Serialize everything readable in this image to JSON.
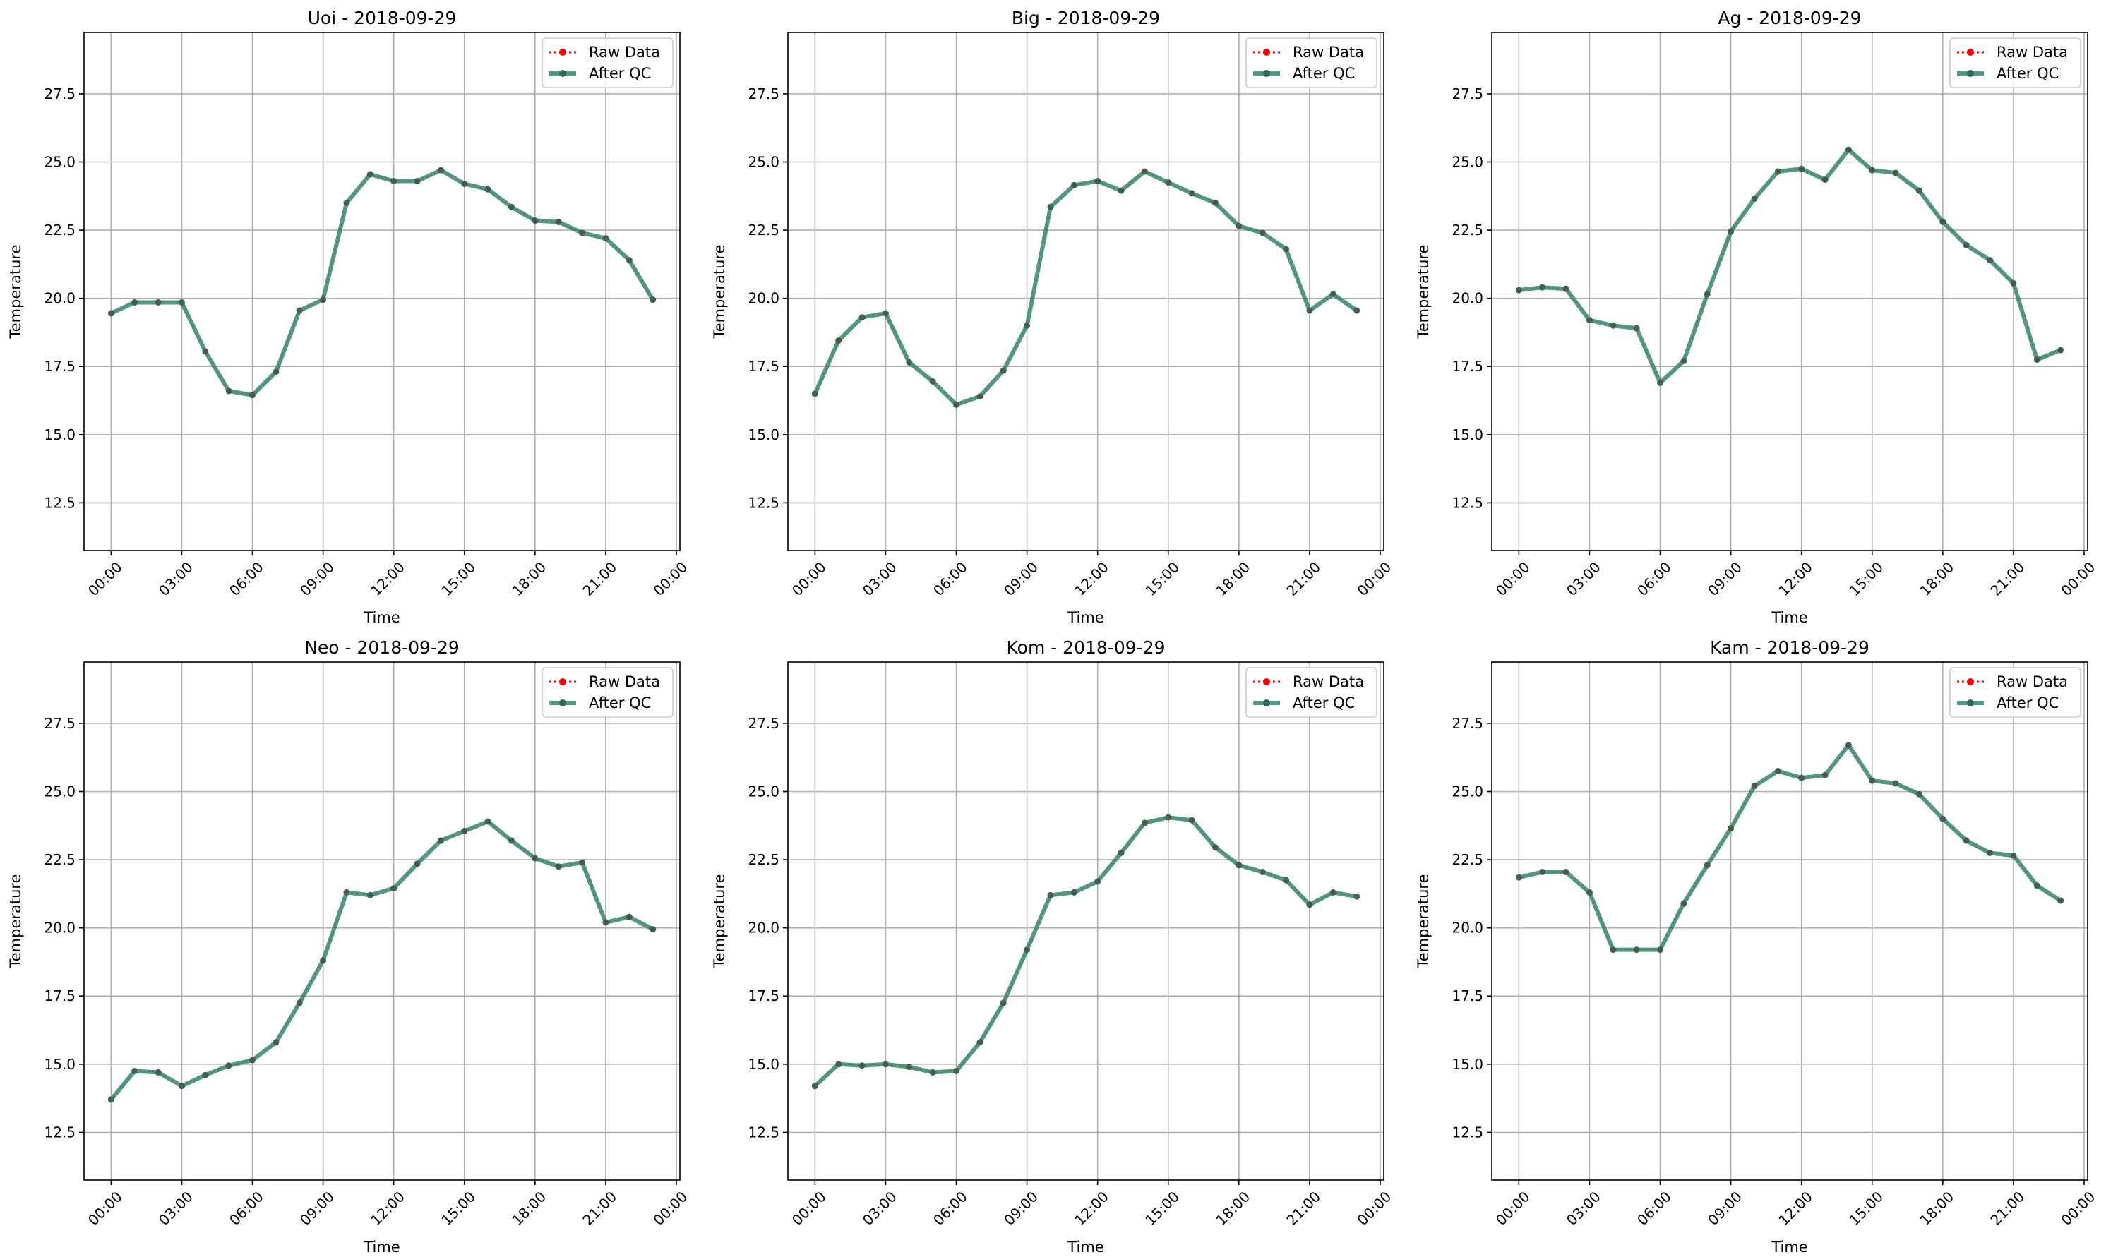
{
  "figure": {
    "legend_placement": "upper-right",
    "grid": true,
    "colors": {
      "raw": "#ff0000",
      "qc": "#2e8b6e",
      "qc_marker": "#2e6b56",
      "grid": "#b0b0b0"
    }
  },
  "chart_data": [
    {
      "type": "line",
      "title": "Uoi - 2018-09-29",
      "xlabel": "Time",
      "ylabel": "Temperature",
      "x_unit": "hours",
      "xlim": [
        -1.15,
        24.15
      ],
      "ylim": [
        10.75,
        29.75
      ],
      "yticks": [
        "12.5",
        "15.0",
        "17.5",
        "20.0",
        "22.5",
        "25.0",
        "27.5"
      ],
      "xticks": [
        "00:00",
        "03:00",
        "06:00",
        "09:00",
        "12:00",
        "15:00",
        "18:00",
        "21:00",
        "00:00"
      ],
      "legend": [
        "Raw Data",
        "After QC"
      ],
      "x": [
        0,
        1,
        2,
        3,
        4,
        5,
        6,
        7,
        8,
        9,
        10,
        11,
        12,
        13,
        14,
        15,
        16,
        17,
        18,
        19,
        20,
        21,
        22,
        23
      ],
      "series": [
        {
          "name": "Raw Data",
          "values": [
            19.45,
            19.85,
            19.85,
            19.85,
            18.05,
            16.6,
            16.45,
            17.3,
            19.55,
            19.95,
            23.5,
            24.55,
            24.3,
            24.3,
            24.7,
            24.2,
            24.0,
            23.35,
            22.85,
            22.8,
            22.4,
            22.2,
            21.4,
            19.95
          ]
        },
        {
          "name": "After QC",
          "values": [
            19.45,
            19.85,
            19.85,
            19.85,
            18.05,
            16.6,
            16.45,
            17.3,
            19.55,
            19.95,
            23.5,
            24.55,
            24.3,
            24.3,
            24.7,
            24.2,
            24.0,
            23.35,
            22.85,
            22.8,
            22.4,
            22.2,
            21.4,
            19.95
          ]
        }
      ]
    },
    {
      "type": "line",
      "title": "Big - 2018-09-29",
      "xlabel": "Time",
      "ylabel": "Temperature",
      "x_unit": "hours",
      "xlim": [
        -1.15,
        24.15
      ],
      "ylim": [
        10.75,
        29.75
      ],
      "yticks": [
        "12.5",
        "15.0",
        "17.5",
        "20.0",
        "22.5",
        "25.0",
        "27.5"
      ],
      "xticks": [
        "00:00",
        "03:00",
        "06:00",
        "09:00",
        "12:00",
        "15:00",
        "18:00",
        "21:00",
        "00:00"
      ],
      "legend": [
        "Raw Data",
        "After QC"
      ],
      "x": [
        0,
        1,
        2,
        3,
        4,
        5,
        6,
        7,
        8,
        9,
        10,
        11,
        12,
        13,
        14,
        15,
        16,
        17,
        18,
        19,
        20,
        21,
        22,
        23
      ],
      "series": [
        {
          "name": "Raw Data",
          "values": [
            16.5,
            18.45,
            19.3,
            19.45,
            17.65,
            16.95,
            16.1,
            16.4,
            17.35,
            19.0,
            23.35,
            24.15,
            24.3,
            23.95,
            24.65,
            24.25,
            23.85,
            23.5,
            22.65,
            22.4,
            21.8,
            19.55,
            20.15,
            19.55
          ]
        },
        {
          "name": "After QC",
          "values": [
            16.5,
            18.45,
            19.3,
            19.45,
            17.65,
            16.95,
            16.1,
            16.4,
            17.35,
            19.0,
            23.35,
            24.15,
            24.3,
            23.95,
            24.65,
            24.25,
            23.85,
            23.5,
            22.65,
            22.4,
            21.8,
            19.55,
            20.15,
            19.55
          ]
        }
      ]
    },
    {
      "type": "line",
      "title": "Ag - 2018-09-29",
      "xlabel": "Time",
      "ylabel": "Temperature",
      "x_unit": "hours",
      "xlim": [
        -1.15,
        24.15
      ],
      "ylim": [
        10.75,
        29.75
      ],
      "yticks": [
        "12.5",
        "15.0",
        "17.5",
        "20.0",
        "22.5",
        "25.0",
        "27.5"
      ],
      "xticks": [
        "00:00",
        "03:00",
        "06:00",
        "09:00",
        "12:00",
        "15:00",
        "18:00",
        "21:00",
        "00:00"
      ],
      "legend": [
        "Raw Data",
        "After QC"
      ],
      "x": [
        0,
        1,
        2,
        3,
        4,
        5,
        6,
        7,
        8,
        9,
        10,
        11,
        12,
        13,
        14,
        15,
        16,
        17,
        18,
        19,
        20,
        21,
        22,
        23
      ],
      "series": [
        {
          "name": "Raw Data",
          "values": [
            20.3,
            20.4,
            20.35,
            19.2,
            19.0,
            18.9,
            16.9,
            17.7,
            20.15,
            22.45,
            23.65,
            24.65,
            24.75,
            24.35,
            25.45,
            24.7,
            24.6,
            23.95,
            22.8,
            21.95,
            21.4,
            20.55,
            17.75,
            18.1
          ]
        },
        {
          "name": "After QC",
          "values": [
            20.3,
            20.4,
            20.35,
            19.2,
            19.0,
            18.9,
            16.9,
            17.7,
            20.15,
            22.45,
            23.65,
            24.65,
            24.75,
            24.35,
            25.45,
            24.7,
            24.6,
            23.95,
            22.8,
            21.95,
            21.4,
            20.55,
            17.75,
            18.1
          ]
        }
      ]
    },
    {
      "type": "line",
      "title": "Neo - 2018-09-29",
      "xlabel": "Time",
      "ylabel": "Temperature",
      "x_unit": "hours",
      "xlim": [
        -1.15,
        24.15
      ],
      "ylim": [
        10.75,
        29.75
      ],
      "yticks": [
        "12.5",
        "15.0",
        "17.5",
        "20.0",
        "22.5",
        "25.0",
        "27.5"
      ],
      "xticks": [
        "00:00",
        "03:00",
        "06:00",
        "09:00",
        "12:00",
        "15:00",
        "18:00",
        "21:00",
        "00:00"
      ],
      "legend": [
        "Raw Data",
        "After QC"
      ],
      "x": [
        0,
        1,
        2,
        3,
        4,
        5,
        6,
        7,
        8,
        9,
        10,
        11,
        12,
        13,
        14,
        15,
        16,
        17,
        18,
        19,
        20,
        21,
        22,
        23
      ],
      "series": [
        {
          "name": "Raw Data",
          "values": [
            13.7,
            14.75,
            14.7,
            14.2,
            14.6,
            14.95,
            15.15,
            15.8,
            17.25,
            18.8,
            21.3,
            21.2,
            21.45,
            22.35,
            23.2,
            23.55,
            23.9,
            23.2,
            22.55,
            22.25,
            22.4,
            20.2,
            20.4,
            19.95
          ]
        },
        {
          "name": "After QC",
          "values": [
            13.7,
            14.75,
            14.7,
            14.2,
            14.6,
            14.95,
            15.15,
            15.8,
            17.25,
            18.8,
            21.3,
            21.2,
            21.45,
            22.35,
            23.2,
            23.55,
            23.9,
            23.2,
            22.55,
            22.25,
            22.4,
            20.2,
            20.4,
            19.95
          ]
        }
      ]
    },
    {
      "type": "line",
      "title": "Kom - 2018-09-29",
      "xlabel": "Time",
      "ylabel": "Temperature",
      "x_unit": "hours",
      "xlim": [
        -1.15,
        24.15
      ],
      "ylim": [
        10.75,
        29.75
      ],
      "yticks": [
        "12.5",
        "15.0",
        "17.5",
        "20.0",
        "22.5",
        "25.0",
        "27.5"
      ],
      "xticks": [
        "00:00",
        "03:00",
        "06:00",
        "09:00",
        "12:00",
        "15:00",
        "18:00",
        "21:00",
        "00:00"
      ],
      "legend": [
        "Raw Data",
        "After QC"
      ],
      "x": [
        0,
        1,
        2,
        3,
        4,
        5,
        6,
        7,
        8,
        9,
        10,
        11,
        12,
        13,
        14,
        15,
        16,
        17,
        18,
        19,
        20,
        21,
        22,
        23
      ],
      "series": [
        {
          "name": "Raw Data",
          "values": [
            14.2,
            15.0,
            14.95,
            15.0,
            14.9,
            14.7,
            14.75,
            15.8,
            17.25,
            19.2,
            21.2,
            21.3,
            21.7,
            22.75,
            23.85,
            24.05,
            23.95,
            22.95,
            22.3,
            22.05,
            21.75,
            20.85,
            21.3,
            21.15
          ]
        },
        {
          "name": "After QC",
          "values": [
            14.2,
            15.0,
            14.95,
            15.0,
            14.9,
            14.7,
            14.75,
            15.8,
            17.25,
            19.2,
            21.2,
            21.3,
            21.7,
            22.75,
            23.85,
            24.05,
            23.95,
            22.95,
            22.3,
            22.05,
            21.75,
            20.85,
            21.3,
            21.15
          ]
        }
      ]
    },
    {
      "type": "line",
      "title": "Kam - 2018-09-29",
      "xlabel": "Time",
      "ylabel": "Temperature",
      "x_unit": "hours",
      "xlim": [
        -1.15,
        24.15
      ],
      "ylim": [
        10.75,
        29.75
      ],
      "yticks": [
        "12.5",
        "15.0",
        "17.5",
        "20.0",
        "22.5",
        "25.0",
        "27.5"
      ],
      "xticks": [
        "00:00",
        "03:00",
        "06:00",
        "09:00",
        "12:00",
        "15:00",
        "18:00",
        "21:00",
        "00:00"
      ],
      "legend": [
        "Raw Data",
        "After QC"
      ],
      "x": [
        0,
        1,
        2,
        3,
        4,
        5,
        6,
        7,
        8,
        9,
        10,
        11,
        12,
        13,
        14,
        15,
        16,
        17,
        18,
        19,
        20,
        21,
        22,
        23
      ],
      "series": [
        {
          "name": "Raw Data",
          "values": [
            21.85,
            22.05,
            22.05,
            21.3,
            19.2,
            19.2,
            19.2,
            20.9,
            22.3,
            23.65,
            25.2,
            25.75,
            25.5,
            25.6,
            26.7,
            25.4,
            25.3,
            24.9,
            24.0,
            23.2,
            22.75,
            22.65,
            21.55,
            21.0
          ]
        },
        {
          "name": "After QC",
          "values": [
            21.85,
            22.05,
            22.05,
            21.3,
            19.2,
            19.2,
            19.2,
            20.9,
            22.3,
            23.65,
            25.2,
            25.75,
            25.5,
            25.6,
            26.7,
            25.4,
            25.3,
            24.9,
            24.0,
            23.2,
            22.75,
            22.65,
            21.55,
            21.0
          ]
        }
      ]
    }
  ]
}
